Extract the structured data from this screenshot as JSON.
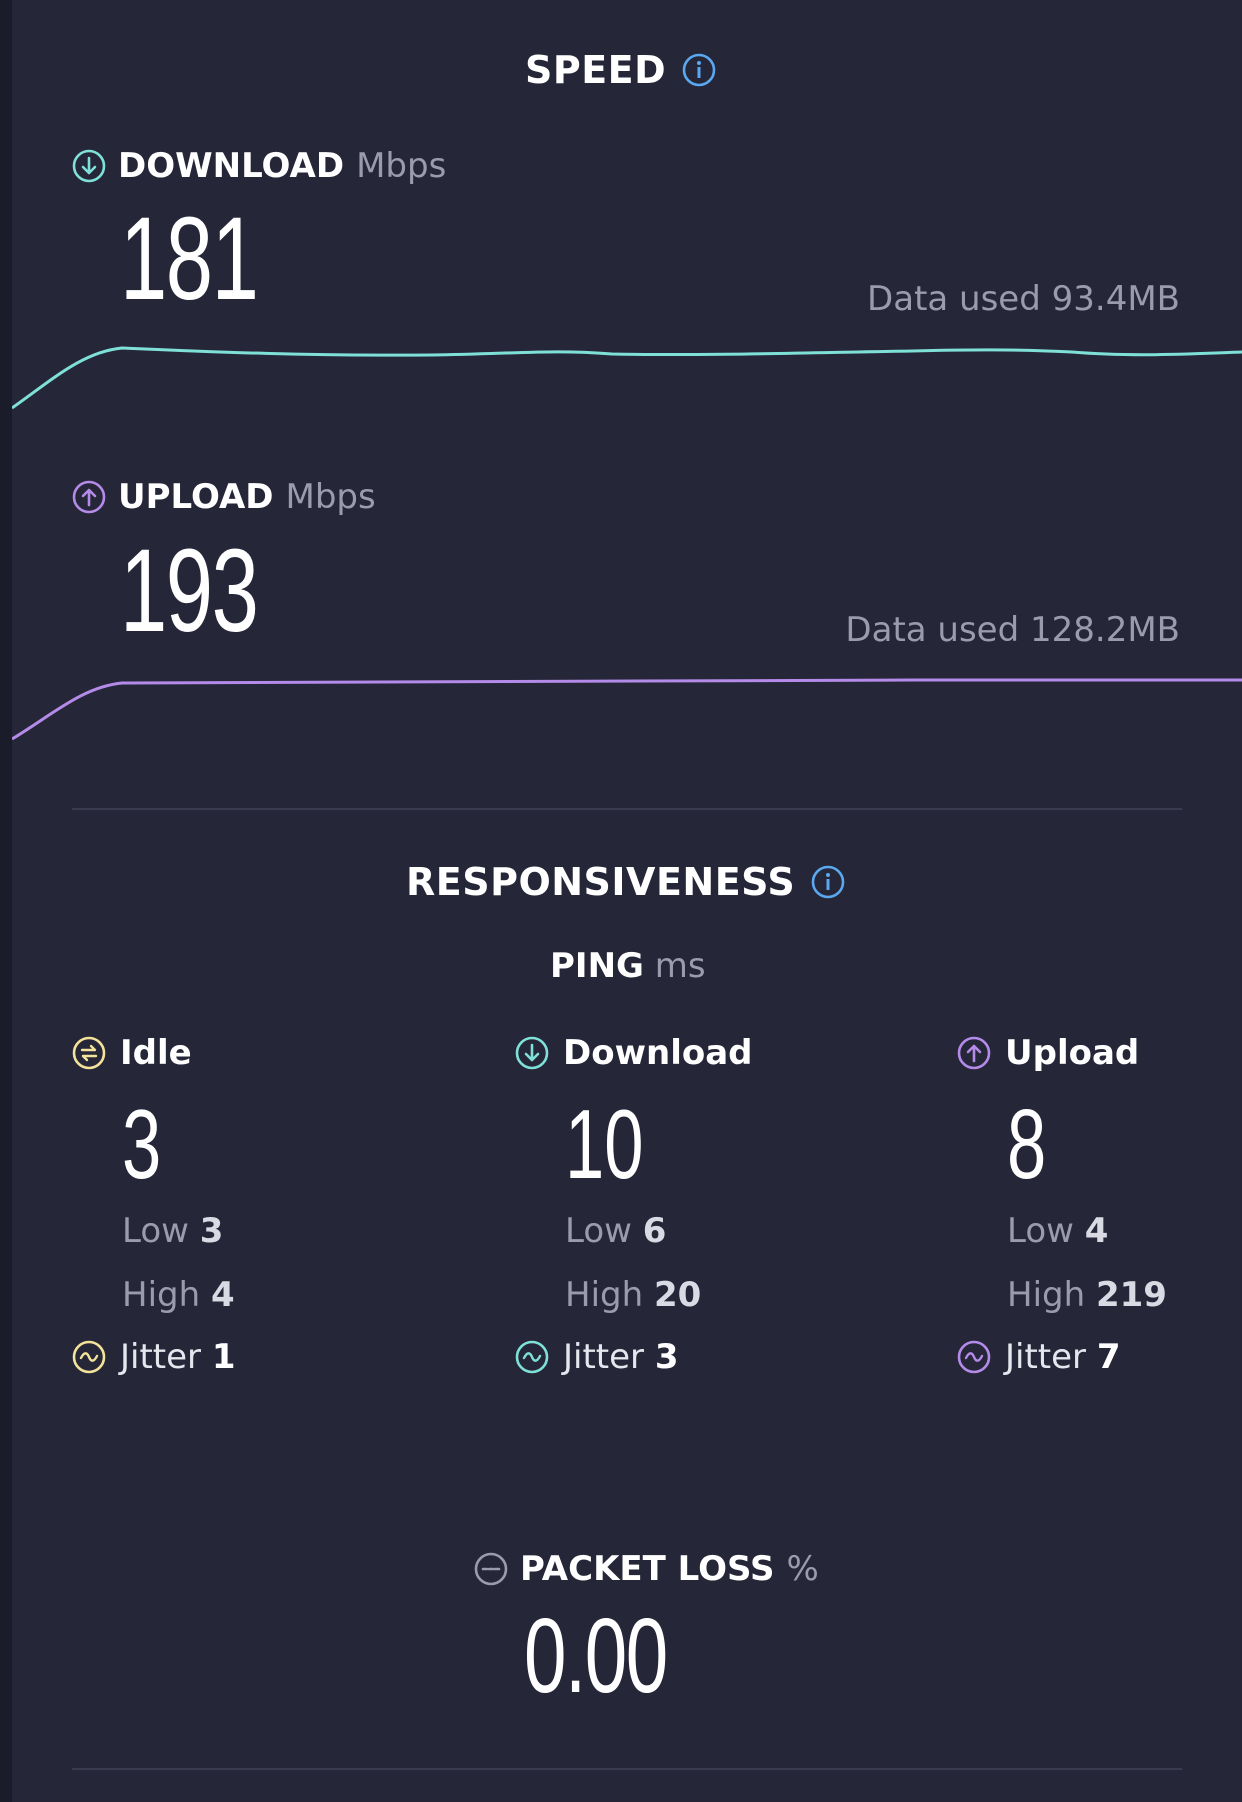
{
  "speed": {
    "title": "SPEED",
    "download": {
      "label": "DOWNLOAD",
      "unit": "Mbps",
      "value": "181",
      "data_used_label": "Data used",
      "data_used_value": "93.4MB",
      "color": "#7fe0d8"
    },
    "upload": {
      "label": "UPLOAD",
      "unit": "Mbps",
      "value": "193",
      "data_used_label": "Data used",
      "data_used_value": "128.2MB",
      "color": "#b48be8"
    }
  },
  "responsiveness": {
    "title": "RESPONSIVENESS",
    "ping_label": "PING",
    "ping_unit": "ms",
    "columns": [
      {
        "name": "Idle",
        "value": "3",
        "low_label": "Low",
        "low": "3",
        "high_label": "High",
        "high": "4",
        "jitter_label": "Jitter",
        "jitter": "1",
        "color": "#f2e29a",
        "icon": "idle-icon"
      },
      {
        "name": "Download",
        "value": "10",
        "low_label": "Low",
        "low": "6",
        "high_label": "High",
        "high": "20",
        "jitter_label": "Jitter",
        "jitter": "3",
        "color": "#7fe0d8",
        "icon": "download-arrow-icon"
      },
      {
        "name": "Upload",
        "value": "8",
        "low_label": "Low",
        "low": "4",
        "high_label": "High",
        "high": "219",
        "jitter_label": "Jitter",
        "jitter": "7",
        "color": "#b48be8",
        "icon": "upload-arrow-icon"
      }
    ]
  },
  "packet_loss": {
    "label": "PACKET LOSS",
    "unit": "%",
    "value": "0.00"
  },
  "colors": {
    "background": "#252638",
    "info_icon": "#5aa8ef",
    "muted_text": "#9a9bad",
    "divider": "#3a3b4f"
  }
}
